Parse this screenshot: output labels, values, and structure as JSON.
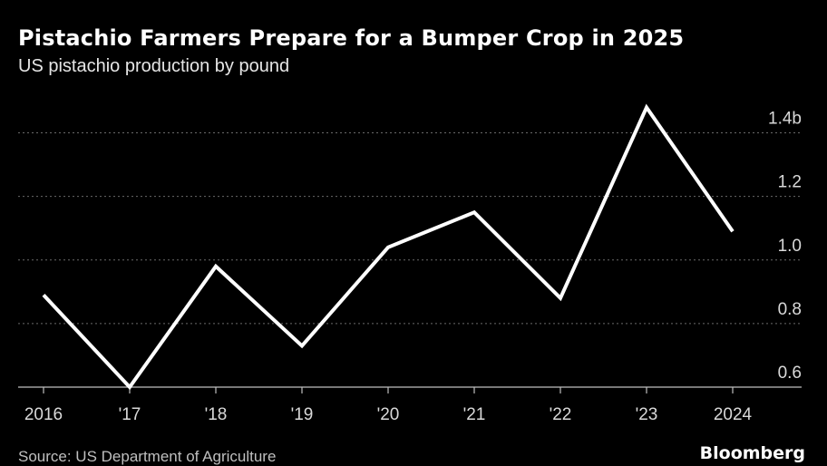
{
  "header": {
    "title": "Pistachio Farmers Prepare for a Bumper Crop in 2025",
    "subtitle": "US pistachio production by pound"
  },
  "footer": {
    "source": "Source: US Department of Agriculture",
    "brand": "Bloomberg"
  },
  "colors": {
    "background": "#000000",
    "line": "#ffffff",
    "grid": "#6a6a6a",
    "text": "#ffffff"
  },
  "chart_data": {
    "type": "line",
    "title": "Pistachio Farmers Prepare for a Bumper Crop in 2025",
    "subtitle": "US pistachio production by pound",
    "categories": [
      "2016",
      "'17",
      "'18",
      "'19",
      "'20",
      "'21",
      "'22",
      "'23",
      "2024"
    ],
    "series": [
      {
        "values": [
          0.89,
          0.6,
          0.98,
          0.73,
          1.04,
          1.15,
          0.88,
          1.48,
          1.09
        ]
      }
    ],
    "y_ticks": [
      0.6,
      0.8,
      1.0,
      1.2,
      1.4
    ],
    "y_tick_labels": [
      "0.6",
      "0.8",
      "1.0",
      "1.2",
      "1.4b"
    ],
    "ylim": [
      0.6,
      1.49
    ],
    "y_axis_side": "right",
    "grid": "horizontal dotted",
    "legend": "none"
  }
}
